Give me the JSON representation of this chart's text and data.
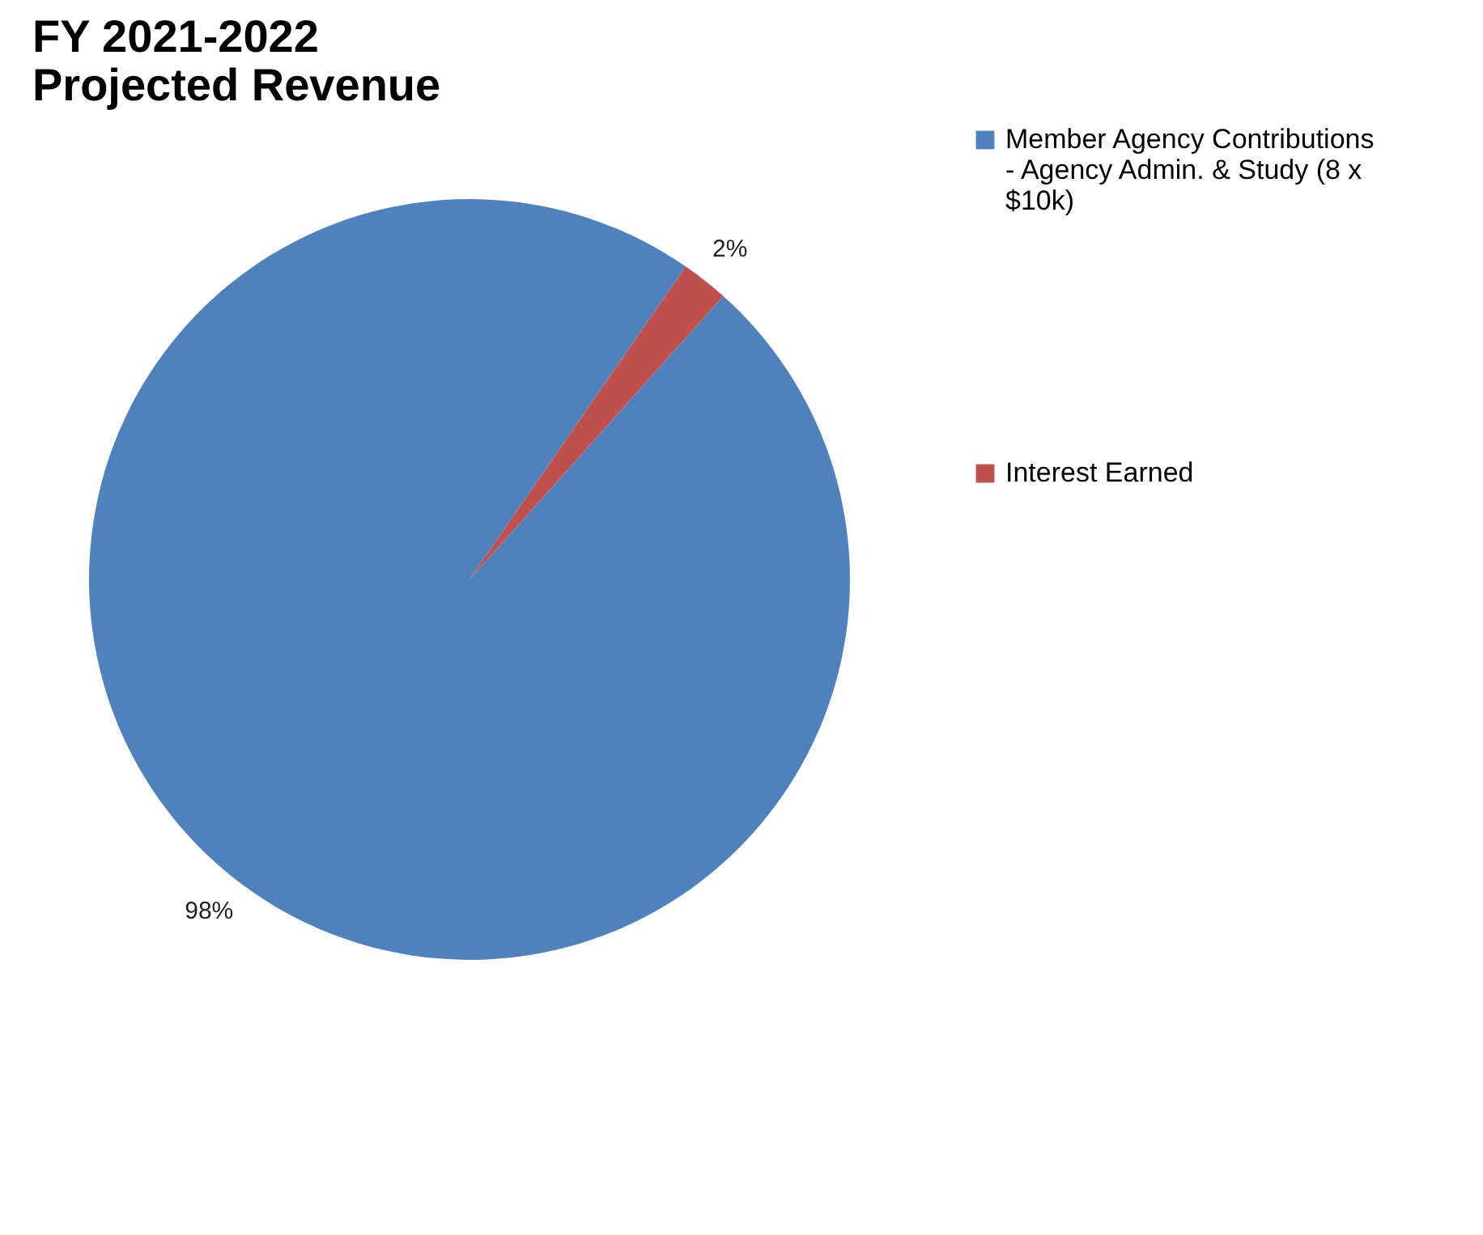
{
  "chart_data": {
    "type": "pie",
    "title": "FY 2021-2022\nProjected Revenue",
    "categories": [
      "Member Agency Contributions - Agency Admin. & Study (8 x $10k)",
      "Interest Earned"
    ],
    "values": [
      98,
      2
    ],
    "colors": [
      "#4f81bd",
      "#c0504d"
    ],
    "value_labels": [
      "98%",
      "2%"
    ],
    "legend": "right"
  }
}
